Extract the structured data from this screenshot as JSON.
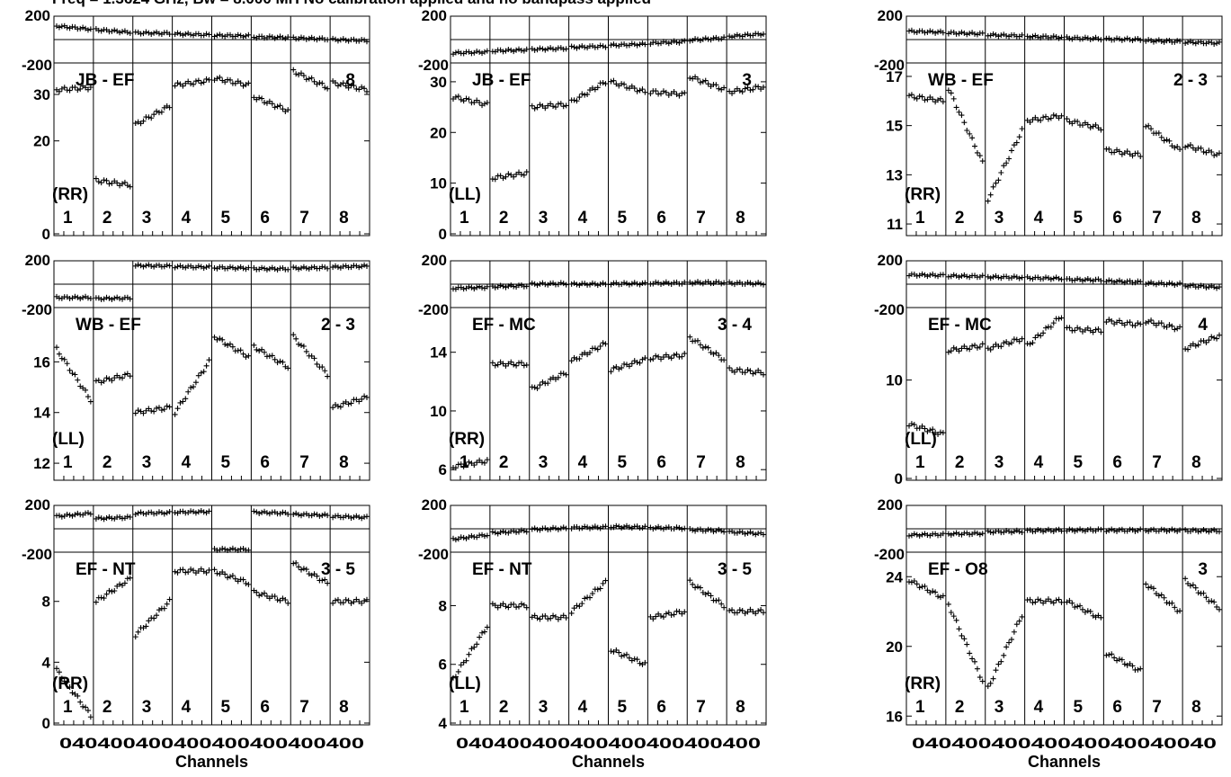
{
  "header": "Freq = 1.3624 GHz, Bw = 8.000 MH   No calibration applied and no bandpass applied",
  "xlabel": "Channels",
  "x_tick_text": "040400400400400400400400",
  "x_tick_text_last": "04040040040040040040040",
  "phase_ticks": [
    "200",
    "-200"
  ],
  "spw_labels": [
    "1",
    "2",
    "3",
    "4",
    "5",
    "6",
    "7",
    "8"
  ],
  "chart_data": [
    {
      "type": "scatter",
      "baseline": "JB - EF",
      "pol": "(RR)",
      "corner": "8",
      "amp_ticks": [
        0,
        20,
        30
      ],
      "amp_range": [
        0,
        36
      ],
      "amp": [
        [
          31,
          31.5
        ],
        [
          11.5,
          10.5
        ],
        [
          23.5,
          27.5
        ],
        [
          32,
          33
        ],
        [
          33.5,
          32
        ],
        [
          29.5,
          26.5
        ],
        [
          35,
          31.5
        ],
        [
          32.5,
          31
        ]
      ],
      "phase": [
        [
          130,
          100
        ],
        [
          95,
          70
        ],
        [
          65,
          60
        ],
        [
          55,
          45
        ],
        [
          40,
          35
        ],
        [
          25,
          20
        ],
        [
          15,
          5
        ],
        [
          0,
          -10
        ]
      ]
    },
    {
      "type": "scatter",
      "baseline": "JB - EF",
      "pol": "(LL)",
      "corner": "3",
      "amp_ticks": [
        0,
        10,
        20,
        30
      ],
      "amp_range": [
        0,
        33
      ],
      "amp": [
        [
          27,
          25.5
        ],
        [
          11,
          12
        ],
        [
          25,
          25.5
        ],
        [
          26,
          30
        ],
        [
          30,
          28
        ],
        [
          28,
          27.5
        ],
        [
          31,
          28.5
        ],
        [
          28,
          29
        ]
      ],
      "phase": [
        [
          -130,
          -120
        ],
        [
          -110,
          -100
        ],
        [
          -95,
          -85
        ],
        [
          -75,
          -65
        ],
        [
          -55,
          -45
        ],
        [
          -35,
          -20
        ],
        [
          -5,
          15
        ],
        [
          30,
          55
        ]
      ]
    },
    {
      "type": "scatter",
      "baseline": "WB - EF",
      "pol": "(RR)",
      "corner": "2 - 3",
      "amp_ticks": [
        11,
        13,
        15,
        17
      ],
      "amp_range": [
        10.6,
        17.4
      ],
      "amp": [
        [
          16.2,
          16
        ],
        [
          16.5,
          13.5
        ],
        [
          12,
          14.8
        ],
        [
          15.2,
          15.4
        ],
        [
          15.2,
          14.9
        ],
        [
          14,
          13.8
        ],
        [
          15,
          14
        ],
        [
          14.2,
          13.8
        ]
      ],
      "phase": [
        [
          80,
          70
        ],
        [
          65,
          55
        ],
        [
          45,
          35
        ],
        [
          30,
          22
        ],
        [
          15,
          8
        ],
        [
          5,
          0
        ],
        [
          -10,
          -20
        ],
        [
          -25,
          -35
        ]
      ]
    },
    {
      "type": "scatter",
      "baseline": "WB - EF",
      "pol": "(LL)",
      "corner": "2 - 3",
      "amp_ticks": [
        12,
        14,
        16
      ],
      "amp_range": [
        11.4,
        18
      ],
      "amp": [
        [
          16.5,
          14.5
        ],
        [
          15.2,
          15.5
        ],
        [
          14,
          14.2
        ],
        [
          14,
          16
        ],
        [
          17,
          16.2
        ],
        [
          16.6,
          15.8
        ],
        [
          17,
          15.5
        ],
        [
          14.2,
          14.6
        ]
      ],
      "phase": [
        [
          -130,
          -130
        ],
        [
          -140,
          -135
        ],
        [
          180,
          175
        ],
        [
          170,
          165
        ],
        [
          160,
          155
        ],
        [
          150,
          148
        ],
        [
          155,
          160
        ],
        [
          165,
          175
        ]
      ]
    },
    {
      "type": "scatter",
      "baseline": "EF - MC",
      "pol": "(RR)",
      "corner": "3 - 4",
      "amp_ticks": [
        6,
        10,
        14
      ],
      "amp_range": [
        5.4,
        16.8
      ],
      "amp": [
        [
          6.2,
          6.6
        ],
        [
          13.2,
          13.2
        ],
        [
          11.5,
          12.6
        ],
        [
          13.4,
          14.6
        ],
        [
          12.8,
          13.5
        ],
        [
          13.6,
          13.8
        ],
        [
          15,
          13.5
        ],
        [
          12.8,
          12.6
        ]
      ],
      "phase": [
        [
          -40,
          -30
        ],
        [
          -25,
          -15
        ],
        [
          0,
          5
        ],
        [
          0,
          0
        ],
        [
          5,
          5
        ],
        [
          10,
          10
        ],
        [
          15,
          15
        ],
        [
          10,
          5
        ]
      ]
    },
    {
      "type": "scatter",
      "baseline": "EF - MC",
      "pol": "(LL)",
      "corner": "4",
      "amp_ticks": [
        0,
        10
      ],
      "amp_range": [
        0,
        17
      ],
      "amp": [
        [
          5.5,
          4.5
        ],
        [
          13,
          13.5
        ],
        [
          13.2,
          14.2
        ],
        [
          13.5,
          16.5
        ],
        [
          15.2,
          15
        ],
        [
          16,
          15.6
        ],
        [
          16,
          15.2
        ],
        [
          13.2,
          14.5
        ]
      ],
      "phase": [
        [
          90,
          85
        ],
        [
          80,
          75
        ],
        [
          70,
          65
        ],
        [
          60,
          55
        ],
        [
          45,
          40
        ],
        [
          30,
          20
        ],
        [
          10,
          0
        ],
        [
          -15,
          -30
        ]
      ]
    },
    {
      "type": "scatter",
      "baseline": "EF - NT",
      "pol": "(RR)",
      "corner": "3 - 5",
      "amp_ticks": [
        0,
        4,
        8
      ],
      "amp_range": [
        0,
        11
      ],
      "amp": [
        [
          3.5,
          0.5
        ],
        [
          8,
          9.5
        ],
        [
          5.8,
          8
        ],
        [
          10,
          10
        ],
        [
          10,
          9.2
        ],
        [
          8.6,
          8
        ],
        [
          10.5,
          9.2
        ],
        [
          8,
          8
        ]
      ],
      "phase": [
        [
          120,
          150
        ],
        [
          100,
          110
        ],
        [
          150,
          155
        ],
        [
          160,
          165
        ],
        [
          -200,
          -200
        ],
        [
          160,
          150
        ],
        [
          140,
          130
        ],
        [
          120,
          110
        ]
      ]
    },
    {
      "type": "scatter",
      "baseline": "EF - NT",
      "pol": "(LL)",
      "corner": "3 - 5",
      "amp_ticks": [
        4,
        6,
        8
      ],
      "amp_range": [
        4,
        9.7
      ],
      "amp": [
        [
          5.5,
          7.3
        ],
        [
          8,
          8
        ],
        [
          7.6,
          7.6
        ],
        [
          7.8,
          8.8
        ],
        [
          6.5,
          6
        ],
        [
          7.6,
          7.8
        ],
        [
          8.8,
          8
        ],
        [
          7.8,
          7.8
        ]
      ],
      "phase": [
        [
          -100,
          -60
        ],
        [
          -40,
          -20
        ],
        [
          -5,
          5
        ],
        [
          10,
          15
        ],
        [
          20,
          15
        ],
        [
          10,
          5
        ],
        [
          -10,
          -20
        ],
        [
          -30,
          -50
        ]
      ]
    },
    {
      "type": "scatter",
      "baseline": "EF - O8",
      "pol": "(RR)",
      "corner": "3",
      "amp_ticks": [
        16,
        20,
        24
      ],
      "amp_range": [
        15.6,
        25.2
      ],
      "amp": [
        [
          23.8,
          22.8
        ],
        [
          22.4,
          18
        ],
        [
          17.6,
          21.8
        ],
        [
          22.6,
          22.6
        ],
        [
          22.6,
          21.6
        ],
        [
          19.6,
          18.6
        ],
        [
          23.6,
          22
        ],
        [
          23.8,
          22.2
        ]
      ],
      "phase": [
        [
          -60,
          -55
        ],
        [
          -50,
          -45
        ],
        [
          -30,
          -25
        ],
        [
          -20,
          -15
        ],
        [
          -15,
          -12
        ],
        [
          -15,
          -15
        ],
        [
          -15,
          -15
        ],
        [
          -18,
          -20
        ]
      ]
    }
  ]
}
